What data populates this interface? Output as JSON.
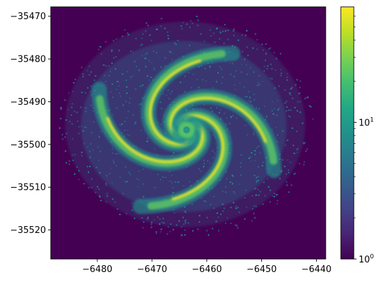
{
  "chart_data": {
    "type": "heatmap",
    "title": "",
    "xlabel": "",
    "ylabel": "",
    "xlim": [
      -6488.5,
      -6438.3
    ],
    "ylim": [
      -35526.8,
      -35467.8
    ],
    "x_ticks": [
      {
        "value": -6480,
        "label": "−6480"
      },
      {
        "value": -6470,
        "label": "−6470"
      },
      {
        "value": -6460,
        "label": "−6460"
      },
      {
        "value": -6450,
        "label": "−6450"
      },
      {
        "value": -6440,
        "label": "−6440"
      }
    ],
    "y_ticks": [
      {
        "value": -35470,
        "label": "−35470"
      },
      {
        "value": -35480,
        "label": "−35480"
      },
      {
        "value": -35490,
        "label": "−35490"
      },
      {
        "value": -35500,
        "label": "−35500"
      },
      {
        "value": -35510,
        "label": "−35510"
      },
      {
        "value": -35520,
        "label": "−35520"
      }
    ],
    "colorbar": {
      "scale": "log",
      "colormap": "viridis",
      "range": [
        1,
        70
      ],
      "major_ticks": [
        {
          "value": 1,
          "base": "10",
          "exponent": "0"
        },
        {
          "value": 10,
          "base": "10",
          "exponent": "1"
        }
      ],
      "minor_ticks": [
        2,
        3,
        4,
        5,
        6,
        7,
        8,
        9,
        20,
        30,
        40,
        50,
        60
      ]
    },
    "density_description": {
      "background_value": 1,
      "center": [
        -6463.7,
        -35496.6
      ],
      "spiral_arms": 4,
      "peak_value": 70
    },
    "colors": {
      "background": "#440154",
      "low": "#31688e",
      "mid": "#21918c",
      "high": "#5ec962",
      "peak": "#fde725"
    },
    "grid": false,
    "legend": "none"
  }
}
